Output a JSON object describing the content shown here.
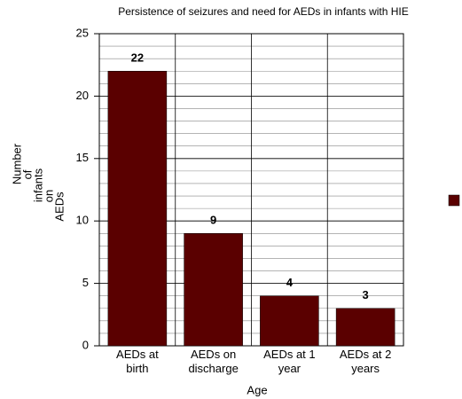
{
  "chart_data": {
    "type": "bar",
    "title": "Persistence of seizures  and need for AEDs in infants with HIE",
    "x_label": "Age",
    "y_label": [
      "Number",
      "of",
      "infants",
      "on",
      "AEDs"
    ],
    "categories": [
      "AEDs at birth",
      "AEDs on discharge",
      "AEDs at 1 year",
      "AEDs at 2 years"
    ],
    "values": [
      22,
      9,
      4,
      3
    ],
    "color": "#5a0000",
    "ylim": [
      0,
      25
    ],
    "yticks": [
      0,
      5,
      10,
      15,
      20,
      25
    ],
    "grid": true,
    "minor_grid": true,
    "legend": "right"
  }
}
